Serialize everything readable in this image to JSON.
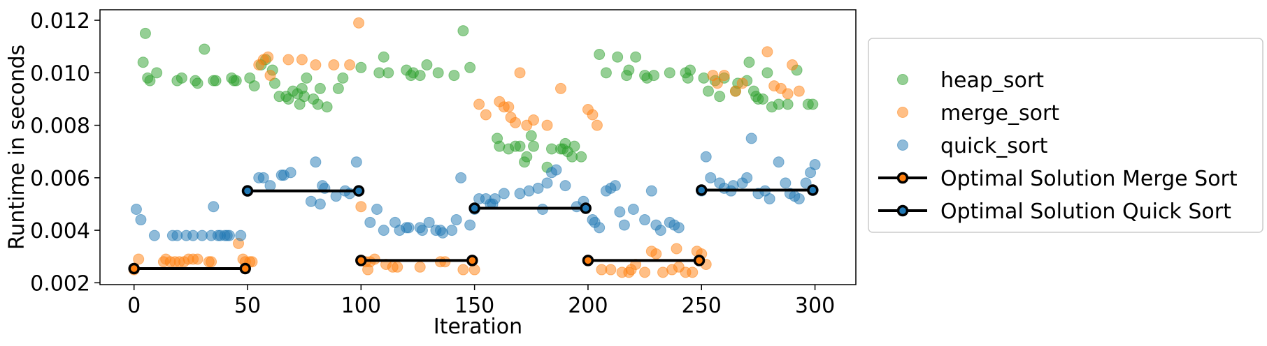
{
  "chart_data": {
    "type": "scatter",
    "title": "",
    "xlabel": "Iteration",
    "ylabel": "Runtime in seconds",
    "xlim": [
      -15,
      318
    ],
    "ylim": [
      0.00193,
      0.0124
    ],
    "xticks": [
      0,
      50,
      100,
      150,
      200,
      250,
      300
    ],
    "xtick_labels": [
      "0",
      "50",
      "100",
      "150",
      "200",
      "250",
      "300"
    ],
    "yticks": [
      0.002,
      0.004,
      0.006,
      0.008,
      0.01,
      0.012
    ],
    "ytick_labels": [
      "0.002",
      "0.004",
      "0.006",
      "0.008",
      "0.010",
      "0.012"
    ],
    "grid": false,
    "legend_position": "right",
    "scatter_series": [
      {
        "name": "heap_sort",
        "color": "#2ca02c",
        "points": [
          [
            4,
            0.0104
          ],
          [
            5,
            0.0115
          ],
          [
            6,
            0.0098
          ],
          [
            7,
            0.0097
          ],
          [
            10,
            0.01
          ],
          [
            19,
            0.0097
          ],
          [
            21,
            0.0098
          ],
          [
            27,
            0.0097
          ],
          [
            28,
            0.0096
          ],
          [
            31,
            0.0109
          ],
          [
            35,
            0.0097
          ],
          [
            36,
            0.0097
          ],
          [
            43,
            0.0098
          ],
          [
            44,
            0.0097
          ],
          [
            45,
            0.0097
          ],
          [
            51,
            0.0098
          ],
          [
            53,
            0.0095
          ],
          [
            56,
            0.0103
          ],
          [
            58,
            0.0105
          ],
          [
            61,
            0.0101
          ],
          [
            62,
            0.0096
          ],
          [
            64,
            0.0091
          ],
          [
            67,
            0.0091
          ],
          [
            68,
            0.009
          ],
          [
            70,
            0.0093
          ],
          [
            72,
            0.0092
          ],
          [
            73,
            0.0088
          ],
          [
            74,
            0.0094
          ],
          [
            75,
            0.0091
          ],
          [
            76,
            0.0098
          ],
          [
            79,
            0.009
          ],
          [
            81,
            0.0088
          ],
          [
            82,
            0.0094
          ],
          [
            85,
            0.0087
          ],
          [
            90,
            0.0094
          ],
          [
            92,
            0.0098
          ],
          [
            100,
            0.0102
          ],
          [
            108,
            0.01
          ],
          [
            110,
            0.0106
          ],
          [
            112,
            0.01
          ],
          [
            120,
            0.0101
          ],
          [
            122,
            0.0099
          ],
          [
            123,
            0.01
          ],
          [
            126,
            0.0099
          ],
          [
            129,
            0.0103
          ],
          [
            134,
            0.01
          ],
          [
            141,
            0.0099
          ],
          [
            145,
            0.0116
          ],
          [
            148,
            0.0102
          ],
          [
            160,
            0.0075
          ],
          [
            161,
            0.0072
          ],
          [
            165,
            0.0071
          ],
          [
            168,
            0.0072
          ],
          [
            170,
            0.0072
          ],
          [
            172,
            0.0066
          ],
          [
            173,
            0.0068
          ],
          [
            175,
            0.0076
          ],
          [
            176,
            0.0072
          ],
          [
            182,
            0.0064
          ],
          [
            184,
            0.0071
          ],
          [
            188,
            0.0071
          ],
          [
            189,
            0.0071
          ],
          [
            190,
            0.0073
          ],
          [
            191,
            0.007
          ],
          [
            193,
            0.0068
          ],
          [
            194,
            0.0072
          ],
          [
            197,
            0.0068
          ],
          [
            205,
            0.0107
          ],
          [
            208,
            0.01
          ],
          [
            213,
            0.0106
          ],
          [
            217,
            0.0099
          ],
          [
            218,
            0.0101
          ],
          [
            221,
            0.0106
          ],
          [
            225,
            0.0099
          ],
          [
            226,
            0.0098
          ],
          [
            229,
            0.0099
          ],
          [
            236,
            0.01
          ],
          [
            243,
            0.01
          ],
          [
            244,
            0.0098
          ],
          [
            245,
            0.0101
          ],
          [
            251,
            0.0098
          ],
          [
            253,
            0.0093
          ],
          [
            256,
            0.0097
          ],
          [
            258,
            0.0091
          ],
          [
            260,
            0.0098
          ],
          [
            265,
            0.0093
          ],
          [
            266,
            0.0096
          ],
          [
            270,
            0.0097
          ],
          [
            271,
            0.0104
          ],
          [
            273,
            0.0093
          ],
          [
            274,
            0.0091
          ],
          [
            275,
            0.009
          ],
          [
            277,
            0.009
          ],
          [
            279,
            0.01
          ],
          [
            281,
            0.0087
          ],
          [
            284,
            0.0088
          ],
          [
            288,
            0.0088
          ],
          [
            292,
            0.0101
          ],
          [
            297,
            0.0088
          ],
          [
            299,
            0.0088
          ]
        ]
      },
      {
        "name": "merge_sort",
        "color": "#ff7f0e",
        "points": [
          [
            0,
            0.0025
          ],
          [
            2,
            0.0029
          ],
          [
            13,
            0.0028
          ],
          [
            14,
            0.0029
          ],
          [
            16,
            0.0028
          ],
          [
            18,
            0.0028
          ],
          [
            20,
            0.0028
          ],
          [
            22,
            0.0028
          ],
          [
            24,
            0.0029
          ],
          [
            26,
            0.0029
          ],
          [
            28,
            0.0029
          ],
          [
            33,
            0.0028
          ],
          [
            34,
            0.0028
          ],
          [
            46,
            0.0035
          ],
          [
            48,
            0.0029
          ],
          [
            49,
            0.0028
          ],
          [
            51,
            0.0028
          ],
          [
            52,
            0.0028
          ],
          [
            55,
            0.0103
          ],
          [
            57,
            0.0105
          ],
          [
            59,
            0.0106
          ],
          [
            60,
            0.0099
          ],
          [
            68,
            0.0105
          ],
          [
            74,
            0.0105
          ],
          [
            80,
            0.0103
          ],
          [
            88,
            0.0103
          ],
          [
            95,
            0.0103
          ],
          [
            99,
            0.0119
          ],
          [
            100,
            0.0049
          ],
          [
            102,
            0.0028
          ],
          [
            103,
            0.0025
          ],
          [
            104,
            0.0028
          ],
          [
            106,
            0.0029
          ],
          [
            111,
            0.0027
          ],
          [
            114,
            0.0026
          ],
          [
            116,
            0.0026
          ],
          [
            126,
            0.0026
          ],
          [
            135,
            0.0028
          ],
          [
            137,
            0.0028
          ],
          [
            145,
            0.0025
          ],
          [
            150,
            0.0025
          ],
          [
            152,
            0.0088
          ],
          [
            155,
            0.0084
          ],
          [
            161,
            0.0089
          ],
          [
            163,
            0.0087
          ],
          [
            165,
            0.0087
          ],
          [
            166,
            0.0083
          ],
          [
            168,
            0.0081
          ],
          [
            170,
            0.01
          ],
          [
            173,
            0.008
          ],
          [
            176,
            0.0082
          ],
          [
            182,
            0.008
          ],
          [
            188,
            0.0094
          ],
          [
            200,
            0.0086
          ],
          [
            202,
            0.0084
          ],
          [
            204,
            0.008
          ],
          [
            206,
            0.0025
          ],
          [
            210,
            0.0025
          ],
          [
            215,
            0.0024
          ],
          [
            218,
            0.0024
          ],
          [
            219,
            0.0025
          ],
          [
            221,
            0.0027
          ],
          [
            225,
            0.0024
          ],
          [
            228,
            0.0032
          ],
          [
            230,
            0.0031
          ],
          [
            233,
            0.0024
          ],
          [
            237,
            0.0025
          ],
          [
            239,
            0.0033
          ],
          [
            240,
            0.0026
          ],
          [
            243,
            0.0024
          ],
          [
            246,
            0.0024
          ],
          [
            248,
            0.0032
          ],
          [
            250,
            0.0031
          ],
          [
            252,
            0.0027
          ],
          [
            255,
            0.0099
          ],
          [
            257,
            0.0096
          ],
          [
            260,
            0.0099
          ],
          [
            265,
            0.0093
          ],
          [
            268,
            0.0096
          ],
          [
            279,
            0.0108
          ],
          [
            282,
            0.0095
          ],
          [
            285,
            0.0094
          ],
          [
            288,
            0.0092
          ],
          [
            290,
            0.0103
          ],
          [
            293,
            0.0093
          ]
        ]
      },
      {
        "name": "quick_sort",
        "color": "#1f77b4",
        "points": [
          [
            1,
            0.0048
          ],
          [
            3,
            0.0044
          ],
          [
            9,
            0.0038
          ],
          [
            17,
            0.0038
          ],
          [
            19,
            0.0038
          ],
          [
            23,
            0.0038
          ],
          [
            26,
            0.0038
          ],
          [
            30,
            0.0038
          ],
          [
            34,
            0.0038
          ],
          [
            35,
            0.0049
          ],
          [
            37,
            0.0038
          ],
          [
            38,
            0.0038
          ],
          [
            40,
            0.0038
          ],
          [
            41,
            0.0038
          ],
          [
            42,
            0.0038
          ],
          [
            47,
            0.0038
          ],
          [
            55,
            0.006
          ],
          [
            57,
            0.006
          ],
          [
            60,
            0.0057
          ],
          [
            65,
            0.0061
          ],
          [
            66,
            0.0061
          ],
          [
            69,
            0.0062
          ],
          [
            78,
            0.0051
          ],
          [
            80,
            0.0066
          ],
          [
            82,
            0.005
          ],
          [
            83,
            0.0057
          ],
          [
            84,
            0.0056
          ],
          [
            89,
            0.0053
          ],
          [
            93,
            0.0055
          ],
          [
            95,
            0.0054
          ],
          [
            98,
            0.0066
          ],
          [
            104,
            0.0043
          ],
          [
            107,
            0.0048
          ],
          [
            110,
            0.004
          ],
          [
            115,
            0.0043
          ],
          [
            117,
            0.004
          ],
          [
            120,
            0.0041
          ],
          [
            121,
            0.0041
          ],
          [
            126,
            0.0041
          ],
          [
            127,
            0.004
          ],
          [
            130,
            0.0043
          ],
          [
            133,
            0.004
          ],
          [
            135,
            0.004
          ],
          [
            136,
            0.0039
          ],
          [
            140,
            0.004
          ],
          [
            142,
            0.0044
          ],
          [
            144,
            0.006
          ],
          [
            148,
            0.0042
          ],
          [
            150,
            0.0048
          ],
          [
            152,
            0.0052
          ],
          [
            155,
            0.0052
          ],
          [
            157,
            0.005
          ],
          [
            158,
            0.005
          ],
          [
            159,
            0.0052
          ],
          [
            163,
            0.0054
          ],
          [
            170,
            0.0054
          ],
          [
            174,
            0.0055
          ],
          [
            178,
            0.0056
          ],
          [
            180,
            0.0048
          ],
          [
            182,
            0.0058
          ],
          [
            184,
            0.0062
          ],
          [
            186,
            0.0063
          ],
          [
            190,
            0.0057
          ],
          [
            195,
            0.0049
          ],
          [
            198,
            0.0051
          ],
          [
            202,
            0.0044
          ],
          [
            203,
            0.0043
          ],
          [
            205,
            0.0041
          ],
          [
            208,
            0.0055
          ],
          [
            210,
            0.0056
          ],
          [
            212,
            0.0057
          ],
          [
            214,
            0.0047
          ],
          [
            216,
            0.0042
          ],
          [
            220,
            0.0048
          ],
          [
            225,
            0.0044
          ],
          [
            228,
            0.0055
          ],
          [
            230,
            0.0042
          ],
          [
            232,
            0.004
          ],
          [
            236,
            0.0043
          ],
          [
            238,
            0.0042
          ],
          [
            240,
            0.0041
          ],
          [
            250,
            0.0055
          ],
          [
            252,
            0.0068
          ],
          [
            254,
            0.006
          ],
          [
            258,
            0.0058
          ],
          [
            260,
            0.0056
          ],
          [
            263,
            0.0055
          ],
          [
            264,
            0.0057
          ],
          [
            268,
            0.0058
          ],
          [
            270,
            0.006
          ],
          [
            272,
            0.0075
          ],
          [
            275,
            0.0054
          ],
          [
            278,
            0.0055
          ],
          [
            280,
            0.0052
          ],
          [
            284,
            0.0066
          ],
          [
            287,
            0.0058
          ],
          [
            289,
            0.0054
          ],
          [
            291,
            0.0053
          ],
          [
            293,
            0.0052
          ],
          [
            296,
            0.0058
          ],
          [
            298,
            0.0062
          ],
          [
            300,
            0.0065
          ]
        ]
      }
    ],
    "line_series": [
      {
        "name": "Optimal Solution Merge Sort",
        "color": "#000000",
        "marker_edge": "#000000",
        "marker_face": "#ff7f0e",
        "segments": [
          [
            [
              0,
              0.00254
            ],
            [
              49,
              0.00254
            ]
          ],
          [
            [
              100,
              0.00285
            ],
            [
              149,
              0.00285
            ]
          ],
          [
            [
              200,
              0.00285
            ],
            [
              249,
              0.00285
            ]
          ]
        ]
      },
      {
        "name": "Optimal Solution Quick Sort",
        "color": "#000000",
        "marker_edge": "#000000",
        "marker_face": "#1f77b4",
        "segments": [
          [
            [
              50,
              0.0055
            ],
            [
              99,
              0.0055
            ]
          ],
          [
            [
              150,
              0.00484
            ],
            [
              199,
              0.00484
            ]
          ],
          [
            [
              250,
              0.00553
            ],
            [
              299,
              0.00553
            ]
          ]
        ]
      }
    ]
  }
}
